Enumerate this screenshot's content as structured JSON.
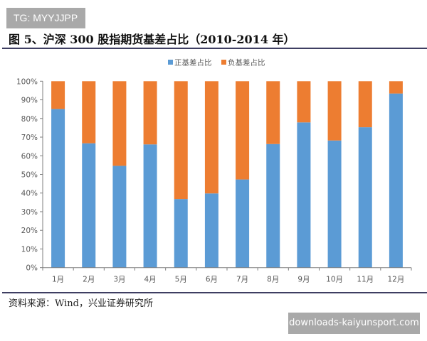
{
  "watermark_top": "TG: MYYJJPP",
  "figure_title": "图 5、沪深 300 股指期货基差占比（2010-2014 年）",
  "source": "资料来源：Wind，兴业证券研究所",
  "watermark_bottom": "downloads-kaiyunsport.com",
  "chart_data": {
    "type": "bar",
    "stacked": true,
    "categories": [
      "1月",
      "2月",
      "3月",
      "4月",
      "5月",
      "6月",
      "7月",
      "8月",
      "9月",
      "10月",
      "11月",
      "12月"
    ],
    "series": [
      {
        "name": "正基差占比",
        "color": "#5b9bd5",
        "values": [
          85.1,
          66.7,
          54.6,
          66.1,
          36.8,
          39.8,
          47.3,
          66.3,
          77.9,
          68.2,
          75.3,
          93.4
        ]
      },
      {
        "name": "负基差占比",
        "color": "#ed7d31",
        "values": [
          14.9,
          33.3,
          45.4,
          33.9,
          63.2,
          60.2,
          52.7,
          33.7,
          22.1,
          31.8,
          24.7,
          6.6
        ]
      }
    ],
    "yticks": [
      "0%",
      "10%",
      "20%",
      "30%",
      "40%",
      "50%",
      "60%",
      "70%",
      "80%",
      "90%",
      "100%"
    ],
    "ylim": [
      0,
      100
    ],
    "legend": "top-center",
    "grid": false
  }
}
